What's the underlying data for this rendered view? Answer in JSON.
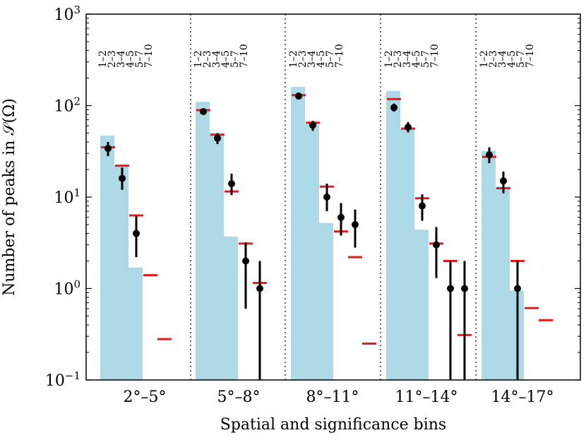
{
  "chart_data": {
    "type": "bar",
    "title": "",
    "xlabel": "Spatial and significance bins",
    "ylabel": "Number of peaks in 𝒮(Ω)",
    "yscale": "log",
    "ylim": [
      0.1,
      1000
    ],
    "y_ticks": [
      {
        "value": 0.1,
        "base": "10",
        "exp": "−1"
      },
      {
        "value": 1,
        "base": "10",
        "exp": "0"
      },
      {
        "value": 10,
        "base": "10",
        "exp": "1"
      },
      {
        "value": 100,
        "base": "10",
        "exp": "2"
      },
      {
        "value": 1000,
        "base": "10",
        "exp": "3"
      }
    ],
    "significance_bins": [
      "1–2",
      "2–3",
      "3–4",
      "4–5",
      "5–7",
      "7–10"
    ],
    "colors": {
      "histogram": "#add8e6",
      "expected": "#e8191a",
      "observed": "#000000"
    },
    "groups": [
      {
        "label": "2°–5°",
        "hist": [
          47,
          22,
          1.7,
          null,
          null,
          null
        ],
        "expected": [
          35,
          22,
          6.3,
          1.4,
          0.28,
          null
        ],
        "observed": [
          34,
          16,
          4,
          null,
          null,
          null
        ],
        "err_low": [
          28,
          12,
          2.2,
          null,
          null,
          null
        ],
        "err_high": [
          40,
          21,
          6.2,
          null,
          null,
          null
        ]
      },
      {
        "label": "5°–8°",
        "hist": [
          110,
          50,
          3.7,
          null,
          null,
          null
        ],
        "expected": [
          89,
          48,
          11.5,
          3.1,
          1.15,
          null
        ],
        "observed": [
          86,
          44,
          14,
          2,
          1,
          null
        ],
        "err_low": [
          79,
          38,
          10.5,
          0.6,
          0.1,
          null
        ],
        "err_high": [
          93,
          50,
          18,
          3.2,
          2,
          null
        ]
      },
      {
        "label": "8°–11°",
        "hist": [
          160,
          63,
          5.2,
          null,
          null,
          null
        ],
        "expected": [
          130,
          65,
          13,
          4.2,
          2.2,
          0.25
        ],
        "observed": [
          127,
          61,
          10,
          6,
          5,
          null
        ],
        "err_low": [
          119,
          53,
          7,
          3.8,
          2.8,
          null
        ],
        "err_high": [
          137,
          68,
          14,
          8.6,
          7.3,
          null
        ]
      },
      {
        "label": "11°–14°",
        "hist": [
          145,
          55,
          4.4,
          null,
          null,
          null
        ],
        "expected": [
          118,
          56,
          9.7,
          3.1,
          2,
          0.31
        ],
        "observed": [
          95,
          58,
          8,
          3,
          1,
          1
        ],
        "err_low": [
          86,
          51,
          5.5,
          1.3,
          0.1,
          0.1
        ],
        "err_high": [
          105,
          66,
          10.7,
          4.7,
          2,
          2
        ]
      },
      {
        "label": "14°–17°",
        "hist": [
          32,
          13,
          0.95,
          null,
          null,
          null
        ],
        "expected": [
          27.5,
          12.5,
          2,
          0.61,
          0.45,
          null
        ],
        "observed": [
          29,
          15,
          1,
          null,
          null,
          null
        ],
        "err_low": [
          23.5,
          11,
          0.1,
          null,
          null,
          null
        ],
        "err_high": [
          35,
          19,
          2,
          null,
          null,
          null
        ]
      }
    ]
  }
}
